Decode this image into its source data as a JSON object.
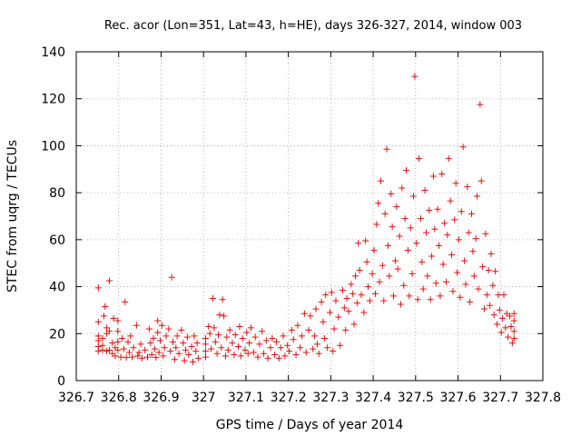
{
  "chart_data": {
    "type": "scatter",
    "title": "Rec. acor (Lon=351, Lat=43, h=HE), days 326-327, 2014, window 003",
    "xlabel": "GPS time / Days of year 2014",
    "ylabel": "STEC from uqrg / TECUs",
    "xlim": [
      326.7,
      327.8
    ],
    "ylim": [
      0,
      140
    ],
    "xticks": [
      326.7,
      326.8,
      326.9,
      327,
      327.1,
      327.2,
      327.3,
      327.4,
      327.5,
      327.6,
      327.7,
      327.8
    ],
    "xtick_labels": [
      "326.7",
      "326.8",
      "326.9",
      "327",
      "327.1",
      "327.2",
      "327.3",
      "327.4",
      "327.5",
      "327.6",
      "327.7",
      "327.8"
    ],
    "yticks": [
      0,
      20,
      40,
      60,
      80,
      100,
      120,
      140
    ],
    "ytick_labels": [
      "0",
      "20",
      "40",
      "60",
      "80",
      "100",
      "120",
      "140"
    ],
    "grid": true,
    "marker": "+",
    "color": "#dd1111",
    "points": [
      [
        326.752,
        39.5
      ],
      [
        326.752,
        25.0
      ],
      [
        326.752,
        19.0
      ],
      [
        326.752,
        17.0
      ],
      [
        326.752,
        14.5
      ],
      [
        326.752,
        12.5
      ],
      [
        326.762,
        18.0
      ],
      [
        326.762,
        15.0
      ],
      [
        326.762,
        13.0
      ],
      [
        326.765,
        27.5
      ],
      [
        326.768,
        31.5
      ],
      [
        326.772,
        22.5
      ],
      [
        326.772,
        20.0
      ],
      [
        326.772,
        12.5
      ],
      [
        326.778,
        42.5
      ],
      [
        326.778,
        21.0
      ],
      [
        326.778,
        13.0
      ],
      [
        326.785,
        16.0
      ],
      [
        326.785,
        11.5
      ],
      [
        326.788,
        26.5
      ],
      [
        326.792,
        14.0
      ],
      [
        326.792,
        10.5
      ],
      [
        326.798,
        25.5
      ],
      [
        326.798,
        21.0
      ],
      [
        326.798,
        16.5
      ],
      [
        326.798,
        13.0
      ],
      [
        326.805,
        10.0
      ],
      [
        326.808,
        18.0
      ],
      [
        326.812,
        13.5
      ],
      [
        326.815,
        33.5
      ],
      [
        326.818,
        9.8
      ],
      [
        326.822,
        16.5
      ],
      [
        326.825,
        12.0
      ],
      [
        326.828,
        19.0
      ],
      [
        326.832,
        10.0
      ],
      [
        326.835,
        14.0
      ],
      [
        326.842,
        23.5
      ],
      [
        326.845,
        10.5
      ],
      [
        326.848,
        12.0
      ],
      [
        326.852,
        15.5
      ],
      [
        326.855,
        9.5
      ],
      [
        326.862,
        13.0
      ],
      [
        326.868,
        10.0
      ],
      [
        326.872,
        22.0
      ],
      [
        326.875,
        16.0
      ],
      [
        326.878,
        11.0
      ],
      [
        326.882,
        18.0
      ],
      [
        326.885,
        13.5
      ],
      [
        326.888,
        9.8
      ],
      [
        326.892,
        25.5
      ],
      [
        326.892,
        20.5
      ],
      [
        326.895,
        12.0
      ],
      [
        326.898,
        17.0
      ],
      [
        326.902,
        23.5
      ],
      [
        326.905,
        10.5
      ],
      [
        326.908,
        14.0
      ],
      [
        326.912,
        19.0
      ],
      [
        326.918,
        22.0
      ],
      [
        326.922,
        12.5
      ],
      [
        326.925,
        44.0
      ],
      [
        326.928,
        16.5
      ],
      [
        326.932,
        9.0
      ],
      [
        326.935,
        14.0
      ],
      [
        326.938,
        19.0
      ],
      [
        326.942,
        11.5
      ],
      [
        326.948,
        21.5
      ],
      [
        326.952,
        16.0
      ],
      [
        326.955,
        8.5
      ],
      [
        326.958,
        13.0
      ],
      [
        326.962,
        18.5
      ],
      [
        326.965,
        11.0
      ],
      [
        326.972,
        14.5
      ],
      [
        326.975,
        8.0
      ],
      [
        326.978,
        19.0
      ],
      [
        326.982,
        12.5
      ],
      [
        326.985,
        16.0
      ],
      [
        326.988,
        9.5
      ],
      [
        327.005,
        18.0
      ],
      [
        327.005,
        15.5
      ],
      [
        327.005,
        12.5
      ],
      [
        327.005,
        10.0
      ],
      [
        327.012,
        23.0
      ],
      [
        327.015,
        20.0
      ],
      [
        327.018,
        13.5
      ],
      [
        327.022,
        35.0
      ],
      [
        327.025,
        22.5
      ],
      [
        327.028,
        16.5
      ],
      [
        327.032,
        11.5
      ],
      [
        327.035,
        19.5
      ],
      [
        327.038,
        28.0
      ],
      [
        327.042,
        14.0
      ],
      [
        327.045,
        34.5
      ],
      [
        327.048,
        27.5
      ],
      [
        327.052,
        10.5
      ],
      [
        327.055,
        18.5
      ],
      [
        327.058,
        13.0
      ],
      [
        327.062,
        21.5
      ],
      [
        327.068,
        16.0
      ],
      [
        327.072,
        11.0
      ],
      [
        327.075,
        19.5
      ],
      [
        327.082,
        14.5
      ],
      [
        327.085,
        23.0
      ],
      [
        327.088,
        10.5
      ],
      [
        327.092,
        18.0
      ],
      [
        327.098,
        13.0
      ],
      [
        327.102,
        20.5
      ],
      [
        327.105,
        11.5
      ],
      [
        327.108,
        16.0
      ],
      [
        327.112,
        22.5
      ],
      [
        327.118,
        12.0
      ],
      [
        327.122,
        18.5
      ],
      [
        327.128,
        10.0
      ],
      [
        327.132,
        15.5
      ],
      [
        327.138,
        21.0
      ],
      [
        327.142,
        11.5
      ],
      [
        327.148,
        17.0
      ],
      [
        327.152,
        9.5
      ],
      [
        327.158,
        14.0
      ],
      [
        327.162,
        18.0
      ],
      [
        327.168,
        11.0
      ],
      [
        327.172,
        16.5
      ],
      [
        327.178,
        9.5
      ],
      [
        327.182,
        14.0
      ],
      [
        327.188,
        19.0
      ],
      [
        327.192,
        10.5
      ],
      [
        327.198,
        15.0
      ],
      [
        327.202,
        12.5
      ],
      [
        327.208,
        21.5
      ],
      [
        327.212,
        17.5
      ],
      [
        327.218,
        11.0
      ],
      [
        327.222,
        23.5
      ],
      [
        327.228,
        14.0
      ],
      [
        327.232,
        19.0
      ],
      [
        327.238,
        28.5
      ],
      [
        327.242,
        12.0
      ],
      [
        327.248,
        21.5
      ],
      [
        327.252,
        27.5
      ],
      [
        327.258,
        13.5
      ],
      [
        327.262,
        19.0
      ],
      [
        327.265,
        30.5
      ],
      [
        327.268,
        15.5
      ],
      [
        327.272,
        11.5
      ],
      [
        327.278,
        33.5
      ],
      [
        327.282,
        25.0
      ],
      [
        327.285,
        18.0
      ],
      [
        327.288,
        36.5
      ],
      [
        327.292,
        14.0
      ],
      [
        327.298,
        29.0
      ],
      [
        327.302,
        37.5
      ],
      [
        327.305,
        12.5
      ],
      [
        327.308,
        22.0
      ],
      [
        327.312,
        34.0
      ],
      [
        327.318,
        27.0
      ],
      [
        327.322,
        15.0
      ],
      [
        327.328,
        38.5
      ],
      [
        327.332,
        31.0
      ],
      [
        327.335,
        21.5
      ],
      [
        327.338,
        35.0
      ],
      [
        327.342,
        29.5
      ],
      [
        327.348,
        41.0
      ],
      [
        327.352,
        37.0
      ],
      [
        327.355,
        24.0
      ],
      [
        327.358,
        44.5
      ],
      [
        327.362,
        33.0
      ],
      [
        327.365,
        58.5
      ],
      [
        327.368,
        47.0
      ],
      [
        327.372,
        36.5
      ],
      [
        327.378,
        29.0
      ],
      [
        327.382,
        59.5
      ],
      [
        327.385,
        50.5
      ],
      [
        327.388,
        40.0
      ],
      [
        327.392,
        34.0
      ],
      [
        327.398,
        45.5
      ],
      [
        327.402,
        55.5
      ],
      [
        327.405,
        37.0
      ],
      [
        327.408,
        66.5
      ],
      [
        327.412,
        75.5
      ],
      [
        327.415,
        42.0
      ],
      [
        327.418,
        85.0
      ],
      [
        327.422,
        49.0
      ],
      [
        327.425,
        34.0
      ],
      [
        327.428,
        71.0
      ],
      [
        327.432,
        98.5
      ],
      [
        327.435,
        57.5
      ],
      [
        327.438,
        44.5
      ],
      [
        327.442,
        79.5
      ],
      [
        327.445,
        65.5
      ],
      [
        327.448,
        36.0
      ],
      [
        327.452,
        51.0
      ],
      [
        327.455,
        74.0
      ],
      [
        327.458,
        47.5
      ],
      [
        327.462,
        61.5
      ],
      [
        327.465,
        32.5
      ],
      [
        327.468,
        82.0
      ],
      [
        327.472,
        40.5
      ],
      [
        327.475,
        69.0
      ],
      [
        327.478,
        89.5
      ],
      [
        327.482,
        55.5
      ],
      [
        327.485,
        36.0
      ],
      [
        327.488,
        65.0
      ],
      [
        327.492,
        45.5
      ],
      [
        327.495,
        78.5
      ],
      [
        327.498,
        129.5
      ],
      [
        327.502,
        58.5
      ],
      [
        327.505,
        34.5
      ],
      [
        327.508,
        94.5
      ],
      [
        327.512,
        69.0
      ],
      [
        327.515,
        50.5
      ],
      [
        327.518,
        39.0
      ],
      [
        327.522,
        81.0
      ],
      [
        327.525,
        63.0
      ],
      [
        327.528,
        44.5
      ],
      [
        327.532,
        72.5
      ],
      [
        327.535,
        34.5
      ],
      [
        327.538,
        53.0
      ],
      [
        327.542,
        87.0
      ],
      [
        327.545,
        64.5
      ],
      [
        327.548,
        41.5
      ],
      [
        327.552,
        73.0
      ],
      [
        327.555,
        57.5
      ],
      [
        327.558,
        36.0
      ],
      [
        327.562,
        88.0
      ],
      [
        327.565,
        49.5
      ],
      [
        327.568,
        67.0
      ],
      [
        327.572,
        42.0
      ],
      [
        327.575,
        62.0
      ],
      [
        327.578,
        94.5
      ],
      [
        327.582,
        76.5
      ],
      [
        327.585,
        53.5
      ],
      [
        327.588,
        38.0
      ],
      [
        327.592,
        68.5
      ],
      [
        327.595,
        84.0
      ],
      [
        327.598,
        46.0
      ],
      [
        327.602,
        60.0
      ],
      [
        327.605,
        35.5
      ],
      [
        327.608,
        72.0
      ],
      [
        327.612,
        99.5
      ],
      [
        327.615,
        51.0
      ],
      [
        327.618,
        41.0
      ],
      [
        327.622,
        82.5
      ],
      [
        327.625,
        63.0
      ],
      [
        327.628,
        33.5
      ],
      [
        327.632,
        71.0
      ],
      [
        327.635,
        55.0
      ],
      [
        327.638,
        44.5
      ],
      [
        327.642,
        60.5
      ],
      [
        327.645,
        78.5
      ],
      [
        327.648,
        39.0
      ],
      [
        327.652,
        117.5
      ],
      [
        327.655,
        85.0
      ],
      [
        327.658,
        48.5
      ],
      [
        327.662,
        30.5
      ],
      [
        327.665,
        62.5
      ],
      [
        327.668,
        36.5
      ],
      [
        327.672,
        47.0
      ],
      [
        327.675,
        32.0
      ],
      [
        327.678,
        54.0
      ],
      [
        327.682,
        40.5
      ],
      [
        327.685,
        28.0
      ],
      [
        327.688,
        46.5
      ],
      [
        327.692,
        24.0
      ],
      [
        327.695,
        36.5
      ],
      [
        327.698,
        30.0
      ],
      [
        327.702,
        20.5
      ],
      [
        327.705,
        26.5
      ],
      [
        327.708,
        36.5
      ],
      [
        327.712,
        22.5
      ],
      [
        327.715,
        28.5
      ],
      [
        327.718,
        18.5
      ],
      [
        327.722,
        27.5
      ],
      [
        327.725,
        23.0
      ],
      [
        327.728,
        16.0
      ],
      [
        327.732,
        28.5
      ],
      [
        327.732,
        25.5
      ],
      [
        327.732,
        21.0
      ],
      [
        327.732,
        18.0
      ]
    ]
  }
}
